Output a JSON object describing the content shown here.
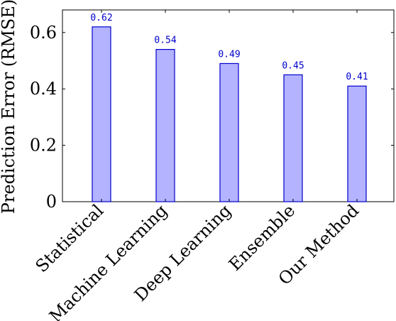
{
  "chart_data": {
    "type": "bar",
    "categories": [
      "Statistical",
      "Machine Learning",
      "Deep Learning",
      "Ensemble",
      "Our Method"
    ],
    "values": [
      0.62,
      0.54,
      0.49,
      0.45,
      0.41
    ],
    "data_labels": [
      "0.62",
      "0.54",
      "0.49",
      "0.45",
      "0.41"
    ],
    "title": "",
    "xlabel": "",
    "ylabel": "Prediction Error (RMSE)",
    "ylim": [
      0,
      0.68
    ],
    "yticks": [
      0,
      0.2,
      0.4,
      0.6
    ],
    "ytick_labels": [
      "0",
      "0.2",
      "0.4",
      "0.6"
    ],
    "grid": false,
    "legend": "none",
    "bar_fill": "#b3b3ff",
    "bar_stroke": "#0000cc",
    "label_color": "#0000cc"
  }
}
